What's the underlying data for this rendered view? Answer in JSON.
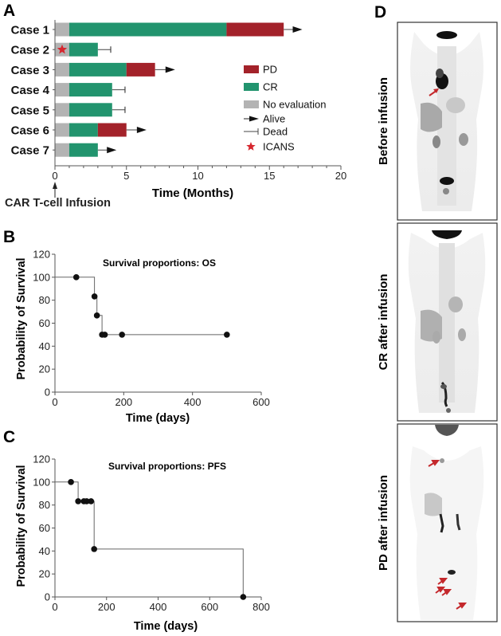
{
  "colors": {
    "pd": "#a3222a",
    "cr": "#22946e",
    "no_eval": "#b3b3b3",
    "icans": "#d6262e",
    "axis": "#555555",
    "curve": "#666666",
    "arrow_mark": "#c4282c"
  },
  "chart_data": [
    {
      "panel": "A",
      "type": "bar",
      "orientation": "horizontal-stacked",
      "title": "",
      "xlabel": "Time (Months)",
      "ylabel": "",
      "xlim": [
        0,
        20
      ],
      "xticks": [
        "0",
        "5",
        "10",
        "15",
        "20"
      ],
      "annotation": "CAR T-cell Infusion",
      "categories": [
        "Case 1",
        "Case 2",
        "Case 3",
        "Case 4",
        "Case 5",
        "Case 6",
        "Case 7"
      ],
      "series": [
        {
          "name": "No evaluation",
          "values": [
            1,
            1,
            1,
            1,
            1,
            1,
            1
          ]
        },
        {
          "name": "CR",
          "values": [
            11,
            2,
            4,
            3,
            3,
            2,
            2
          ]
        },
        {
          "name": "PD",
          "values": [
            4,
            0,
            2,
            0,
            0,
            2,
            0
          ]
        }
      ],
      "outcomes": [
        {
          "case": "Case 1",
          "status": "Alive",
          "end": 17.3
        },
        {
          "case": "Case 2",
          "status": "Dead",
          "end": 3.9
        },
        {
          "case": "Case 3",
          "status": "Alive",
          "end": 8.4
        },
        {
          "case": "Case 4",
          "status": "Dead",
          "end": 4.9
        },
        {
          "case": "Case 5",
          "status": "Dead",
          "end": 4.9
        },
        {
          "case": "Case 6",
          "status": "Alive",
          "end": 6.4
        },
        {
          "case": "Case 7",
          "status": "Alive",
          "end": 4.3
        }
      ],
      "icans": [
        {
          "case": "Case 2",
          "time": 0.5
        }
      ],
      "legend": [
        {
          "label": "PD",
          "kind": "swatch",
          "color_key": "pd"
        },
        {
          "label": "CR",
          "kind": "swatch",
          "color_key": "cr"
        },
        {
          "label": "No evaluation",
          "kind": "swatch",
          "color_key": "no_eval"
        },
        {
          "label": "Alive",
          "kind": "arrow"
        },
        {
          "label": "Dead",
          "kind": "tick"
        },
        {
          "label": "ICANS",
          "kind": "star"
        }
      ],
      "legend_placement": "right"
    },
    {
      "panel": "B",
      "type": "line",
      "style": "kaplan-meier",
      "title": "Survival proportions: OS",
      "xlabel": "Time (days)",
      "ylabel": "Probability of Survival",
      "xlim": [
        0,
        600
      ],
      "ylim": [
        0,
        120
      ],
      "xticks": [
        "0",
        "200",
        "400",
        "600"
      ],
      "yticks": [
        "0",
        "20",
        "40",
        "60",
        "80",
        "100",
        "120"
      ],
      "steps": [
        [
          0,
          100
        ],
        [
          115,
          100
        ],
        [
          115,
          83.3
        ],
        [
          122,
          83.3
        ],
        [
          122,
          66.7
        ],
        [
          137,
          66.7
        ],
        [
          137,
          50
        ],
        [
          500,
          50
        ]
      ],
      "censored": [
        [
          62,
          100
        ],
        [
          115,
          83.3
        ],
        [
          122,
          66.7
        ],
        [
          137,
          50
        ],
        [
          145,
          50
        ],
        [
          195,
          50
        ],
        [
          500,
          50
        ]
      ]
    },
    {
      "panel": "C",
      "type": "line",
      "style": "kaplan-meier",
      "title": "Survival proportions: PFS",
      "xlabel": "Time (days)",
      "ylabel": "Probability of Survival",
      "xlim": [
        0,
        800
      ],
      "ylim": [
        0,
        120
      ],
      "xticks": [
        "0",
        "200",
        "400",
        "600",
        "800"
      ],
      "yticks": [
        "0",
        "20",
        "40",
        "60",
        "80",
        "100",
        "120"
      ],
      "steps": [
        [
          0,
          100
        ],
        [
          90,
          100
        ],
        [
          90,
          83.3
        ],
        [
          152,
          83.3
        ],
        [
          152,
          41.7
        ],
        [
          730,
          41.7
        ],
        [
          730,
          0
        ]
      ],
      "censored": [
        [
          62,
          100
        ],
        [
          90,
          83.3
        ],
        [
          112,
          83.3
        ],
        [
          123,
          83.3
        ],
        [
          140,
          83.3
        ],
        [
          152,
          41.7
        ],
        [
          730,
          0
        ]
      ]
    }
  ],
  "panels": {
    "a": "A",
    "b": "B",
    "c": "C",
    "d": "D"
  },
  "scans": [
    {
      "label": "Before infusion",
      "arrows": 1
    },
    {
      "label": "CR after infusion",
      "arrows": 0
    },
    {
      "label": "PD after infusion",
      "arrows": 5
    }
  ]
}
